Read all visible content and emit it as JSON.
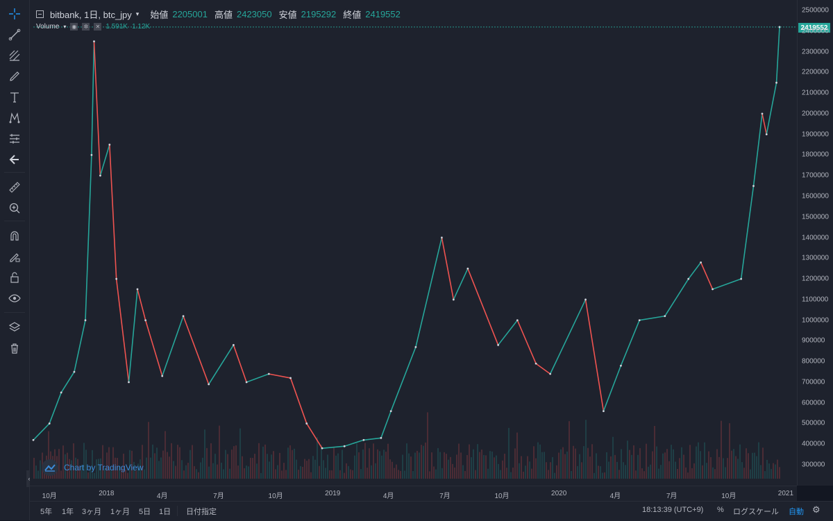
{
  "header": {
    "symbol": "bitbank, 1日, btc_jpy",
    "open_label": "始値",
    "open_value": "2205001",
    "high_label": "高値",
    "high_value": "2423050",
    "low_label": "安値",
    "low_value": "2195292",
    "close_label": "終値",
    "close_value": "2419552"
  },
  "volume": {
    "label": "Volume",
    "value1": "1.591K",
    "value2": "1.12K"
  },
  "watermark": "Chart by TradingView",
  "last_price": "2419552",
  "price_axis": [
    "2500000",
    "2400000",
    "2300000",
    "2200000",
    "2100000",
    "2000000",
    "1900000",
    "1800000",
    "1700000",
    "1600000",
    "1500000",
    "1400000",
    "1300000",
    "1200000",
    "1100000",
    "1000000",
    "900000",
    "800000",
    "700000",
    "600000",
    "500000",
    "400000",
    "300000"
  ],
  "time_axis": [
    "10月",
    "2018",
    "4月",
    "7月",
    "10月",
    "2019",
    "4月",
    "7月",
    "10月",
    "2020",
    "4月",
    "7月",
    "10月",
    "2021"
  ],
  "ranges": [
    "5年",
    "1年",
    "3ヶ月",
    "1ヶ月",
    "5日",
    "1日"
  ],
  "date_range_label": "日付指定",
  "clock": "18:13:39 (UTC+9)",
  "percent_label": "%",
  "log_label": "ログスケール",
  "auto_label": "自動",
  "colors": {
    "up": "#26a69a",
    "down": "#ef5350",
    "bg": "#1e222d"
  },
  "chart_data": {
    "type": "line",
    "title": "bitbank, 1日, btc_jpy",
    "xlabel": "",
    "ylabel": "",
    "ylim": [
      200000,
      2530000
    ],
    "x": [
      "2017-09-05",
      "2017-10-01",
      "2017-10-20",
      "2017-11-10",
      "2017-11-28",
      "2017-12-08",
      "2017-12-12",
      "2017-12-22",
      "2018-01-06",
      "2018-01-17",
      "2018-02-06",
      "2018-02-20",
      "2018-03-05",
      "2018-04-01",
      "2018-05-05",
      "2018-06-15",
      "2018-07-25",
      "2018-08-15",
      "2018-09-20",
      "2018-10-25",
      "2018-11-20",
      "2018-12-15",
      "2019-01-20",
      "2019-02-20",
      "2019-03-20",
      "2019-04-05",
      "2019-05-15",
      "2019-06-26",
      "2019-07-15",
      "2019-08-07",
      "2019-09-25",
      "2019-10-26",
      "2019-11-25",
      "2019-12-18",
      "2020-02-13",
      "2020-03-13",
      "2020-04-10",
      "2020-05-10",
      "2020-06-20",
      "2020-07-28",
      "2020-08-17",
      "2020-09-05",
      "2020-10-21",
      "2020-11-10",
      "2020-11-24",
      "2020-12-01",
      "2020-12-17",
      "2020-12-22"
    ],
    "series": [
      {
        "values": [
          420000,
          500000,
          650000,
          750000,
          1000000,
          1800000,
          2350000,
          1700000,
          1850000,
          1200000,
          700000,
          1150000,
          1000000,
          730000,
          1020000,
          690000,
          880000,
          700000,
          740000,
          720000,
          500000,
          380000,
          390000,
          420000,
          430000,
          560000,
          870000,
          1400000,
          1100000,
          1250000,
          880000,
          1000000,
          790000,
          740000,
          1100000,
          560000,
          780000,
          1000000,
          1020000,
          1200000,
          1280000,
          1150000,
          1200000,
          1650000,
          2000000,
          1900000,
          2150000,
          2419552
        ]
      }
    ]
  }
}
